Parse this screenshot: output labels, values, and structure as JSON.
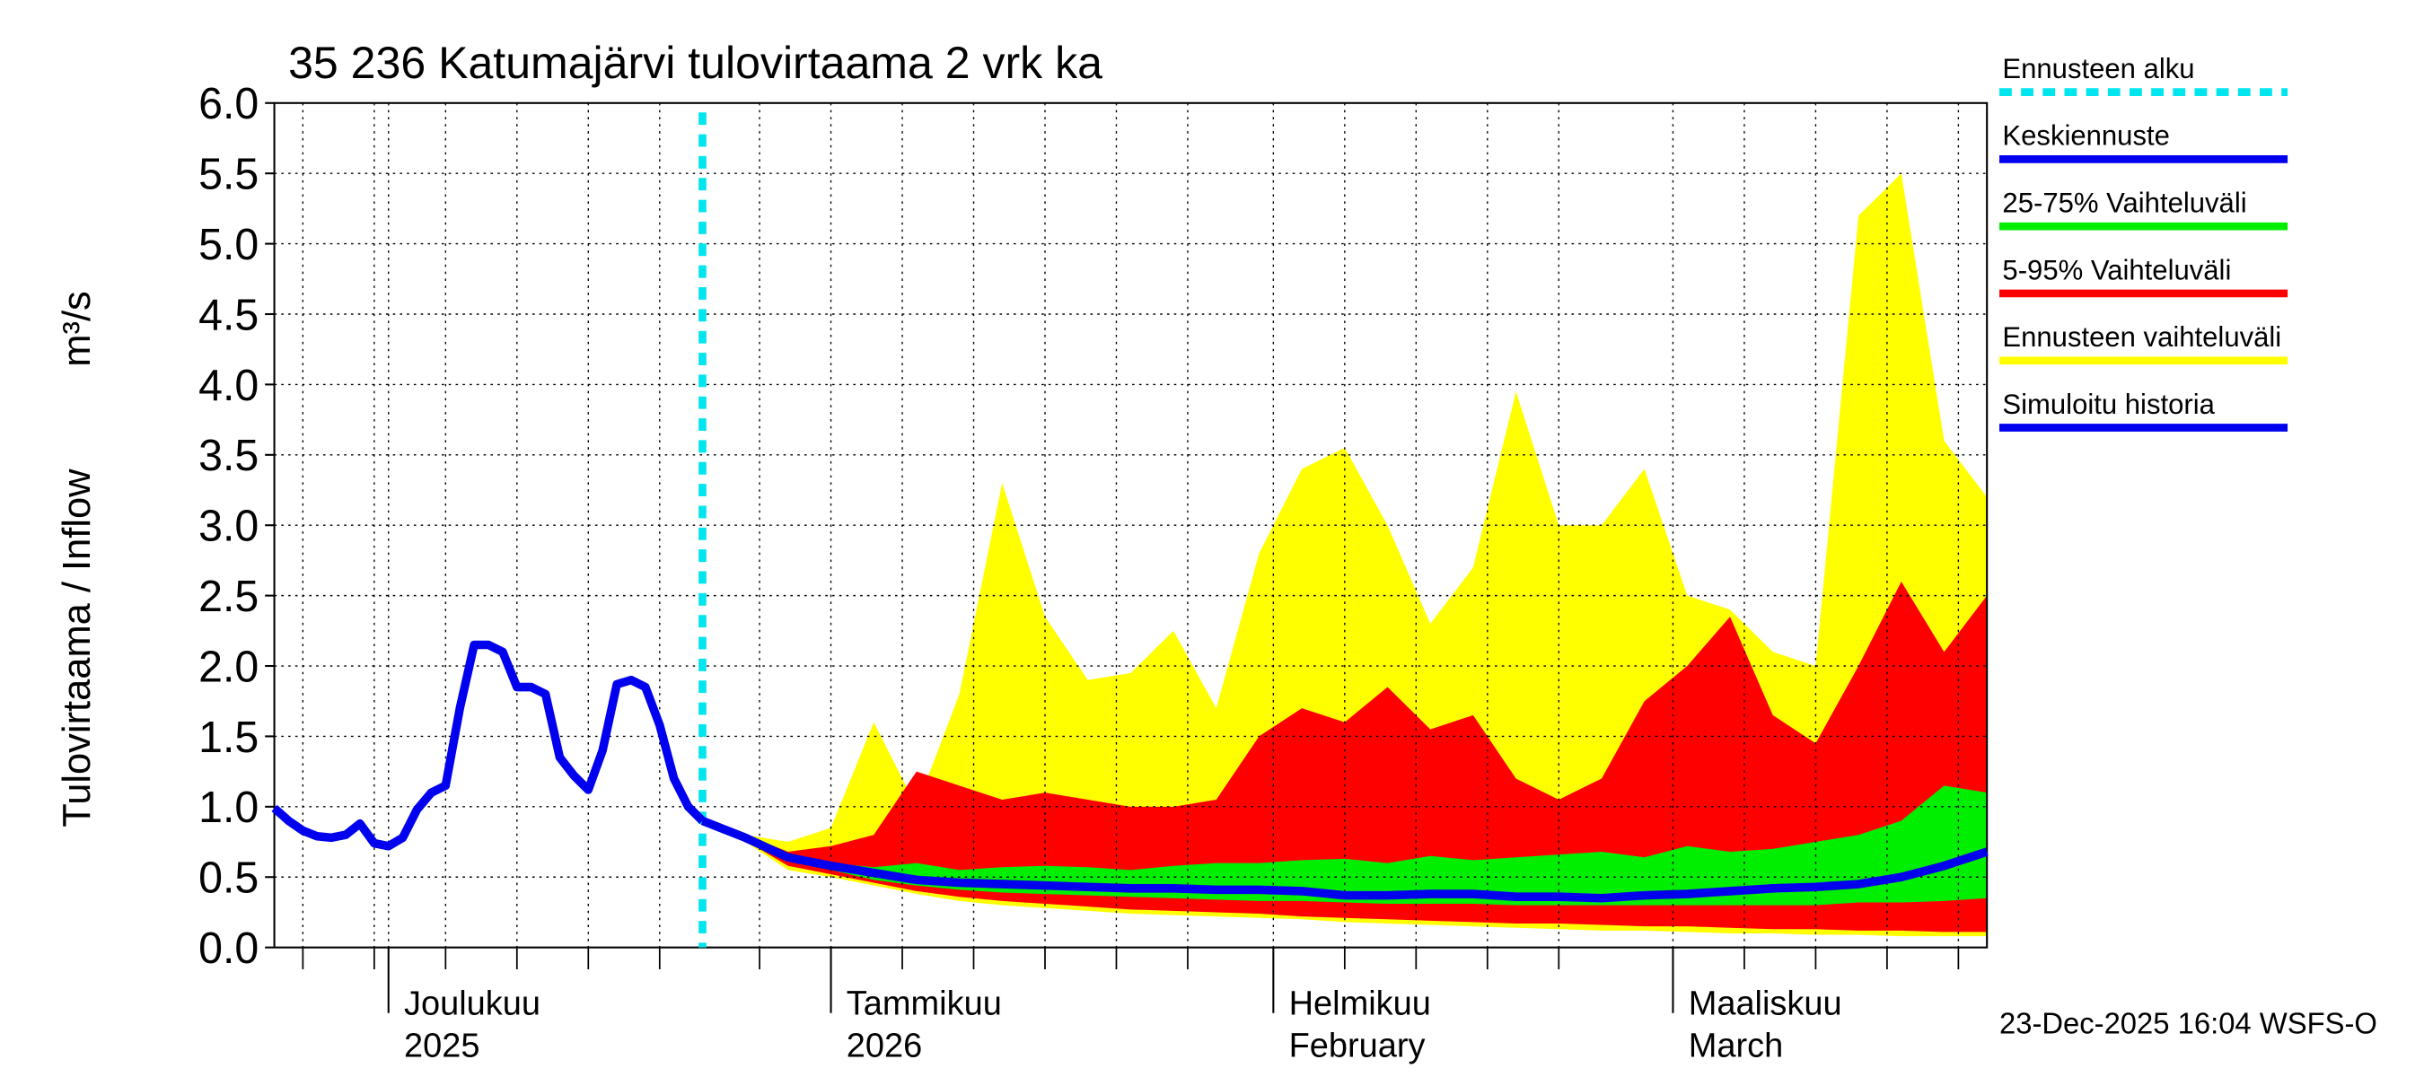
{
  "chart_data": {
    "type": "line",
    "title": "35 236 Katumajärvi tulovirtaama 2 vrk ka",
    "y_label": "Tulovirtaama / Inflow",
    "y_unit": "m³/s",
    "footer": "23-Dec-2025 16:04 WSFS-O",
    "xlim": [
      0,
      120
    ],
    "ylim": [
      0,
      6
    ],
    "yticks": [
      {
        "value": 0,
        "label": "0.0"
      },
      0.5,
      {
        "value": 1,
        "label": "1.0"
      },
      1.5,
      {
        "value": 2,
        "label": "2.0"
      },
      2.5,
      {
        "value": 3,
        "label": "3.0"
      },
      3.5,
      {
        "value": 4,
        "label": "4.0"
      },
      4.5,
      {
        "value": 5,
        "label": "5.0"
      },
      5.5,
      {
        "value": 6,
        "label": "6.0"
      }
    ],
    "xticks": [
      {
        "value": 8,
        "label": [
          "Joulukuu",
          "2025"
        ]
      },
      {
        "value": 39,
        "label": [
          "Tammikuu",
          "2026"
        ]
      },
      {
        "value": 70,
        "label": [
          "Helmikuu",
          "February"
        ]
      },
      {
        "value": 98,
        "label": [
          "Maaliskuu",
          "March"
        ]
      }
    ],
    "xgrid": [
      2,
      7,
      12,
      17,
      22,
      27,
      34,
      44,
      49,
      54,
      59,
      64,
      75,
      80,
      85,
      90,
      103,
      108,
      113,
      118
    ],
    "grid": true,
    "forecast_start": {
      "name": "Ennusteen alku",
      "x": 30,
      "color": "#00e5ee"
    },
    "bands": [
      {
        "name": "Ennusteen vaihteluväli",
        "color": "#ffff00",
        "x": [
          30,
          33,
          36,
          39,
          42,
          45,
          48,
          51,
          54,
          57,
          60,
          63,
          66,
          69,
          72,
          75,
          78,
          81,
          84,
          87,
          90,
          93,
          96,
          99,
          102,
          105,
          108,
          111,
          114,
          117,
          120
        ],
        "upper": [
          0.9,
          0.8,
          0.75,
          0.85,
          1.6,
          1.0,
          1.8,
          3.3,
          2.35,
          1.9,
          1.95,
          2.25,
          1.7,
          2.8,
          3.4,
          3.55,
          3.0,
          2.3,
          2.7,
          3.95,
          3.0,
          3.0,
          3.4,
          2.5,
          2.4,
          2.1,
          2.0,
          5.2,
          5.5,
          3.6,
          3.2
        ],
        "lower": [
          0.9,
          0.75,
          0.55,
          0.5,
          0.44,
          0.38,
          0.33,
          0.3,
          0.28,
          0.26,
          0.24,
          0.23,
          0.22,
          0.21,
          0.2,
          0.18,
          0.17,
          0.16,
          0.15,
          0.14,
          0.13,
          0.12,
          0.12,
          0.11,
          0.1,
          0.1,
          0.09,
          0.09,
          0.08,
          0.08,
          0.08
        ]
      },
      {
        "name": "5-95% Vaihteluväli",
        "color": "#ff0000",
        "x": [
          30,
          33,
          36,
          39,
          42,
          45,
          48,
          51,
          54,
          57,
          60,
          63,
          66,
          69,
          72,
          75,
          78,
          81,
          84,
          87,
          90,
          93,
          96,
          99,
          102,
          105,
          108,
          111,
          114,
          117,
          120
        ],
        "upper": [
          0.9,
          0.8,
          0.68,
          0.72,
          0.8,
          1.25,
          1.15,
          1.05,
          1.1,
          1.05,
          1.0,
          1.0,
          1.05,
          1.5,
          1.7,
          1.6,
          1.85,
          1.55,
          1.65,
          1.2,
          1.05,
          1.2,
          1.75,
          2.0,
          2.35,
          1.65,
          1.45,
          2.0,
          2.6,
          2.1,
          2.5
        ],
        "lower": [
          0.9,
          0.76,
          0.58,
          0.52,
          0.46,
          0.4,
          0.36,
          0.33,
          0.31,
          0.29,
          0.27,
          0.26,
          0.25,
          0.24,
          0.22,
          0.21,
          0.2,
          0.19,
          0.18,
          0.17,
          0.17,
          0.16,
          0.15,
          0.15,
          0.14,
          0.13,
          0.13,
          0.12,
          0.12,
          0.11,
          0.11
        ]
      },
      {
        "name": "25-75% Vaihteluväli",
        "color": "#00ee00",
        "x": [
          30,
          33,
          36,
          39,
          42,
          45,
          48,
          51,
          54,
          57,
          60,
          63,
          66,
          69,
          72,
          75,
          78,
          81,
          84,
          87,
          90,
          93,
          96,
          99,
          102,
          105,
          108,
          111,
          114,
          117,
          120
        ],
        "upper": [
          0.9,
          0.8,
          0.66,
          0.6,
          0.57,
          0.6,
          0.55,
          0.57,
          0.58,
          0.57,
          0.55,
          0.58,
          0.6,
          0.6,
          0.62,
          0.63,
          0.6,
          0.65,
          0.62,
          0.64,
          0.66,
          0.68,
          0.64,
          0.72,
          0.68,
          0.7,
          0.75,
          0.8,
          0.9,
          1.15,
          1.1
        ],
        "lower": [
          0.9,
          0.77,
          0.62,
          0.55,
          0.48,
          0.44,
          0.41,
          0.39,
          0.38,
          0.37,
          0.36,
          0.35,
          0.34,
          0.33,
          0.33,
          0.32,
          0.31,
          0.31,
          0.31,
          0.3,
          0.3,
          0.3,
          0.3,
          0.3,
          0.3,
          0.3,
          0.3,
          0.32,
          0.32,
          0.33,
          0.35
        ]
      }
    ],
    "series": [
      {
        "name": "Keskiennuste",
        "color": "#0000ee",
        "x": [
          30,
          33,
          36,
          39,
          42,
          45,
          48,
          51,
          54,
          57,
          60,
          63,
          66,
          69,
          72,
          75,
          78,
          81,
          84,
          87,
          90,
          93,
          96,
          99,
          102,
          105,
          108,
          111,
          114,
          117,
          120
        ],
        "values": [
          0.9,
          0.78,
          0.64,
          0.58,
          0.53,
          0.48,
          0.46,
          0.45,
          0.44,
          0.43,
          0.42,
          0.42,
          0.41,
          0.41,
          0.4,
          0.37,
          0.37,
          0.38,
          0.38,
          0.36,
          0.36,
          0.35,
          0.37,
          0.38,
          0.4,
          0.42,
          0.43,
          0.45,
          0.5,
          0.58,
          0.68
        ]
      },
      {
        "name": "Simuloitu historia",
        "color": "#0000ee",
        "x": [
          0,
          1,
          2,
          3,
          4,
          5,
          6,
          7,
          8,
          9,
          10,
          11,
          12,
          13,
          14,
          15,
          16,
          17,
          18,
          19,
          20,
          21,
          22,
          23,
          24,
          25,
          26,
          27,
          28,
          29,
          30
        ],
        "values": [
          0.99,
          0.9,
          0.83,
          0.79,
          0.78,
          0.8,
          0.88,
          0.74,
          0.72,
          0.78,
          0.98,
          1.1,
          1.15,
          1.7,
          2.15,
          2.15,
          2.1,
          1.85,
          1.85,
          1.8,
          1.35,
          1.22,
          1.12,
          1.4,
          1.87,
          1.9,
          1.85,
          1.58,
          1.2,
          1.0,
          0.9
        ]
      }
    ]
  }
}
